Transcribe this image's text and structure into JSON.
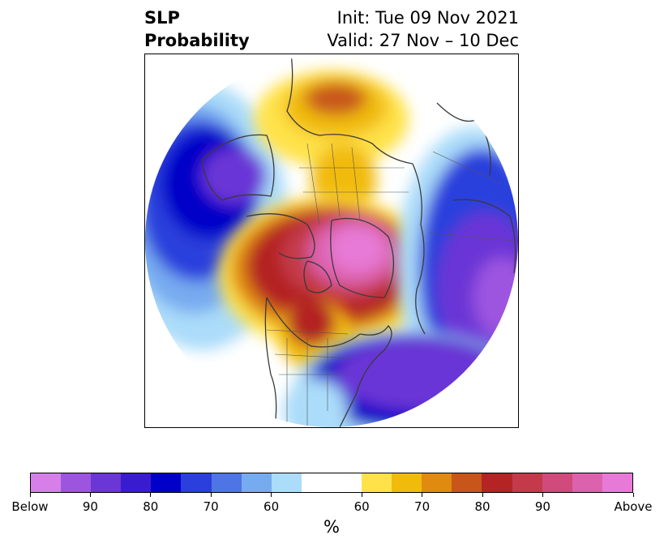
{
  "title": {
    "left_line1": "SLP",
    "left_line2": "Probability",
    "init": "Init: Tue 09 Nov 2021",
    "valid": "Valid: 27 Nov – 10 Dec"
  },
  "map": {
    "projection": "polar stereographic (North Pole)",
    "layers": [
      "probability-shading",
      "coastlines",
      "country-borders",
      "state-province-borders"
    ]
  },
  "colorbar": {
    "unit_label": "%",
    "below_colors": [
      "#d67fe8",
      "#9d55e0",
      "#6a36d6",
      "#3a1cd0",
      "#0000c8",
      "#2a3fdc",
      "#4f74e6",
      "#77abf0",
      "#abdcf9"
    ],
    "neutral_color": "#ffffff",
    "above_colors": [
      "#ffe24a",
      "#f1bb0c",
      "#e08a10",
      "#c8561a",
      "#b42424",
      "#c43a4a",
      "#d04a7c",
      "#dc62ae",
      "#e77ad6"
    ],
    "tick_labels": [
      "Below",
      "90",
      "80",
      "70",
      "60",
      "60",
      "70",
      "80",
      "90",
      "Above"
    ]
  }
}
